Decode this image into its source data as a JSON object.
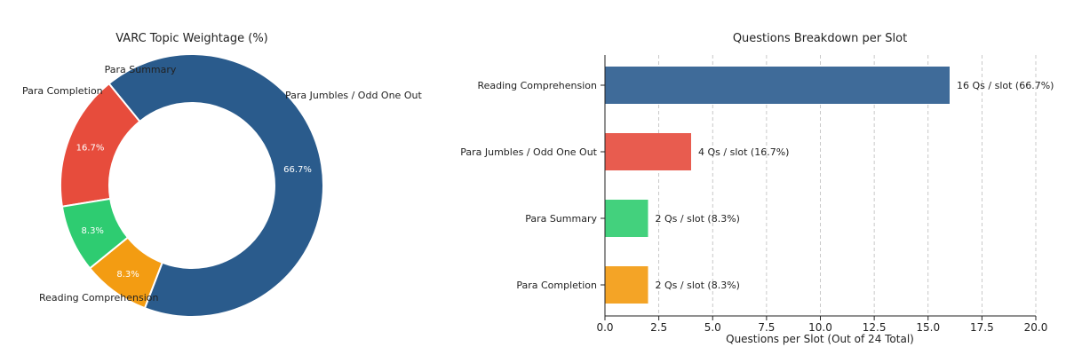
{
  "chart_data": [
    {
      "type": "pie",
      "title": "VARC Topic Weightage (%)",
      "donut": true,
      "categories": [
        "Reading Comprehension",
        "Para Jumbles / Odd One Out",
        "Para Summary",
        "Para Completion"
      ],
      "values": [
        66.7,
        16.7,
        8.3,
        8.3
      ],
      "value_labels": [
        "66.7%",
        "16.7%",
        "8.3%",
        "8.3%"
      ],
      "colors": [
        "#2a5b8c",
        "#e74c3c",
        "#2ecc71",
        "#f39c12"
      ]
    },
    {
      "type": "bar",
      "orientation": "horizontal",
      "title": "Questions Breakdown per Slot",
      "categories": [
        "Reading Comprehension",
        "Para Jumbles / Odd One Out",
        "Para Summary",
        "Para Completion"
      ],
      "values": [
        16,
        4,
        2,
        2
      ],
      "value_labels": [
        "16 Qs / slot (66.7%)",
        "4 Qs / slot (16.7%)",
        "2 Qs / slot (8.3%)",
        "2 Qs / slot (8.3%)"
      ],
      "colors": [
        "#3f6b99",
        "#e85c4f",
        "#43d17d",
        "#f4a426"
      ],
      "xlabel": "Questions per Slot (Out of 24 Total)",
      "ylabel": "",
      "xlim": [
        0,
        20
      ],
      "xticks": [
        "0.0",
        "2.5",
        "5.0",
        "7.5",
        "10.0",
        "12.5",
        "15.0",
        "17.5",
        "20.0"
      ],
      "grid": "x-dashed"
    }
  ]
}
